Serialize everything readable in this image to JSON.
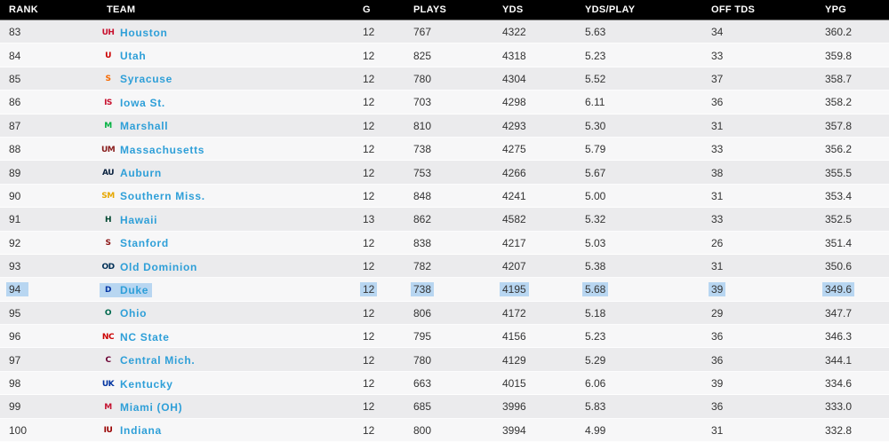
{
  "colors": {
    "header_bg": "#000000",
    "row_stripe": "#ebebed",
    "row_base": "#f7f7f8",
    "link_blue": "#2e9fd8",
    "text": "#333333",
    "selection_highlight": "#b8d6f1"
  },
  "table": {
    "columns": [
      "RANK",
      "TEAM",
      "G",
      "PLAYS",
      "YDS",
      "YDS/PLAY",
      "OFF TDS",
      "YPG"
    ],
    "rows": [
      {
        "rank": "83",
        "team": "Houston",
        "logo": {
          "text": "UH",
          "color": "#C8102E"
        },
        "g": "12",
        "plays": "767",
        "yds": "4322",
        "yds_play": "5.63",
        "off_tds": "34",
        "ypg": "360.2",
        "selected": false
      },
      {
        "rank": "84",
        "team": "Utah",
        "logo": {
          "text": "U",
          "color": "#CC0000"
        },
        "g": "12",
        "plays": "825",
        "yds": "4318",
        "yds_play": "5.23",
        "off_tds": "33",
        "ypg": "359.8",
        "selected": false
      },
      {
        "rank": "85",
        "team": "Syracuse",
        "logo": {
          "text": "S",
          "color": "#F76900"
        },
        "g": "12",
        "plays": "780",
        "yds": "4304",
        "yds_play": "5.52",
        "off_tds": "37",
        "ypg": "358.7",
        "selected": false
      },
      {
        "rank": "86",
        "team": "Iowa St.",
        "logo": {
          "text": "IS",
          "color": "#C8102E"
        },
        "g": "12",
        "plays": "703",
        "yds": "4298",
        "yds_play": "6.11",
        "off_tds": "36",
        "ypg": "358.2",
        "selected": false
      },
      {
        "rank": "87",
        "team": "Marshall",
        "logo": {
          "text": "M",
          "color": "#00B140"
        },
        "g": "12",
        "plays": "810",
        "yds": "4293",
        "yds_play": "5.30",
        "off_tds": "31",
        "ypg": "357.8",
        "selected": false
      },
      {
        "rank": "88",
        "team": "Massachusetts",
        "logo": {
          "text": "UM",
          "color": "#881C1C"
        },
        "g": "12",
        "plays": "738",
        "yds": "4275",
        "yds_play": "5.79",
        "off_tds": "33",
        "ypg": "356.2",
        "selected": false
      },
      {
        "rank": "89",
        "team": "Auburn",
        "logo": {
          "text": "AU",
          "color": "#0C2340"
        },
        "g": "12",
        "plays": "753",
        "yds": "4266",
        "yds_play": "5.67",
        "off_tds": "38",
        "ypg": "355.5",
        "selected": false
      },
      {
        "rank": "90",
        "team": "Southern Miss.",
        "logo": {
          "text": "SM",
          "color": "#E6A700"
        },
        "g": "12",
        "plays": "848",
        "yds": "4241",
        "yds_play": "5.00",
        "off_tds": "31",
        "ypg": "353.4",
        "selected": false
      },
      {
        "rank": "91",
        "team": "Hawaii",
        "logo": {
          "text": "H",
          "color": "#024731"
        },
        "g": "13",
        "plays": "862",
        "yds": "4582",
        "yds_play": "5.32",
        "off_tds": "33",
        "ypg": "352.5",
        "selected": false
      },
      {
        "rank": "92",
        "team": "Stanford",
        "logo": {
          "text": "S",
          "color": "#8C1515"
        },
        "g": "12",
        "plays": "838",
        "yds": "4217",
        "yds_play": "5.03",
        "off_tds": "26",
        "ypg": "351.4",
        "selected": false
      },
      {
        "rank": "93",
        "team": "Old Dominion",
        "logo": {
          "text": "OD",
          "color": "#003057"
        },
        "g": "12",
        "plays": "782",
        "yds": "4207",
        "yds_play": "5.38",
        "off_tds": "31",
        "ypg": "350.6",
        "selected": false
      },
      {
        "rank": "94",
        "team": "Duke",
        "logo": {
          "text": "D",
          "color": "#0736A4"
        },
        "g": "12",
        "plays": "738",
        "yds": "4195",
        "yds_play": "5.68",
        "off_tds": "39",
        "ypg": "349.6",
        "selected": true
      },
      {
        "rank": "95",
        "team": "Ohio",
        "logo": {
          "text": "O",
          "color": "#00694E"
        },
        "g": "12",
        "plays": "806",
        "yds": "4172",
        "yds_play": "5.18",
        "off_tds": "29",
        "ypg": "347.7",
        "selected": false
      },
      {
        "rank": "96",
        "team": "NC State",
        "logo": {
          "text": "NC",
          "color": "#CC0000"
        },
        "g": "12",
        "plays": "795",
        "yds": "4156",
        "yds_play": "5.23",
        "off_tds": "36",
        "ypg": "346.3",
        "selected": false
      },
      {
        "rank": "97",
        "team": "Central Mich.",
        "logo": {
          "text": "C",
          "color": "#6A0032"
        },
        "g": "12",
        "plays": "780",
        "yds": "4129",
        "yds_play": "5.29",
        "off_tds": "36",
        "ypg": "344.1",
        "selected": false
      },
      {
        "rank": "98",
        "team": "Kentucky",
        "logo": {
          "text": "UK",
          "color": "#0033A0"
        },
        "g": "12",
        "plays": "663",
        "yds": "4015",
        "yds_play": "6.06",
        "off_tds": "39",
        "ypg": "334.6",
        "selected": false
      },
      {
        "rank": "99",
        "team": "Miami (OH)",
        "logo": {
          "text": "M",
          "color": "#C41230"
        },
        "g": "12",
        "plays": "685",
        "yds": "3996",
        "yds_play": "5.83",
        "off_tds": "36",
        "ypg": "333.0",
        "selected": false
      },
      {
        "rank": "100",
        "team": "Indiana",
        "logo": {
          "text": "IU",
          "color": "#990000"
        },
        "g": "12",
        "plays": "800",
        "yds": "3994",
        "yds_play": "4.99",
        "off_tds": "31",
        "ypg": "332.8",
        "selected": false
      }
    ]
  }
}
